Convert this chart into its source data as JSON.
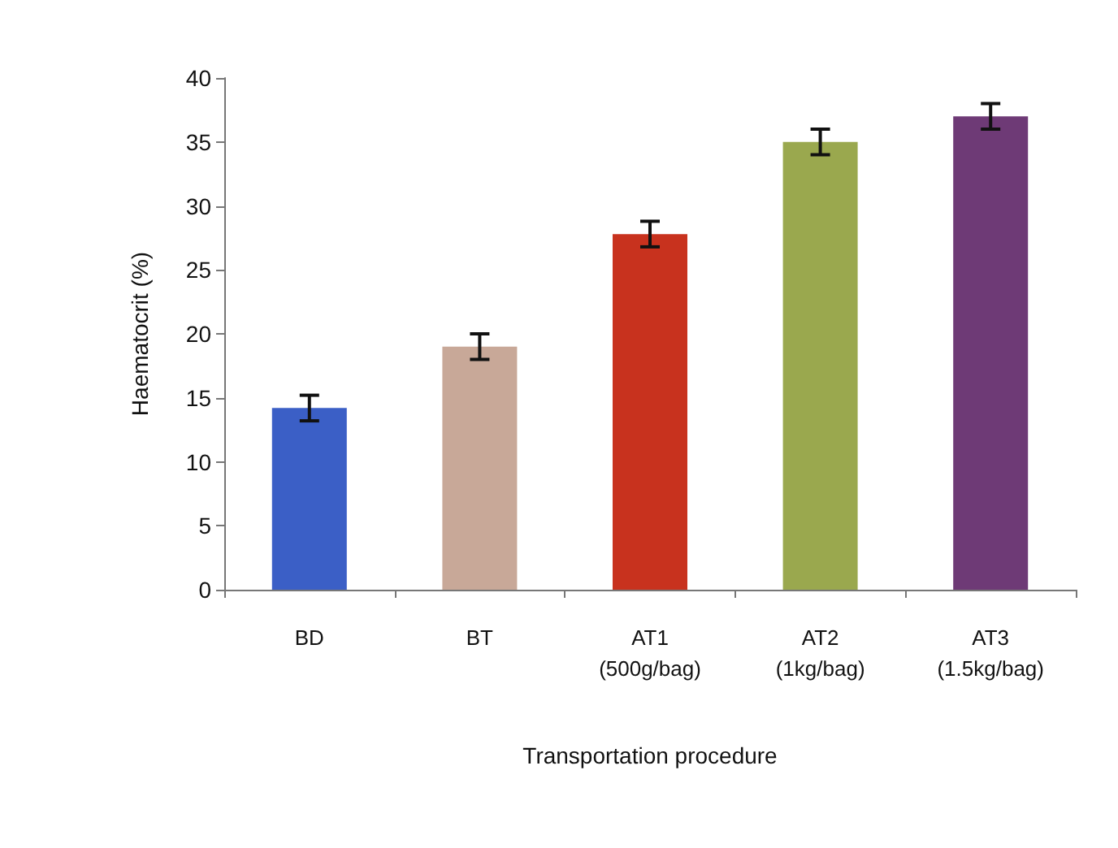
{
  "chart_data": {
    "type": "bar",
    "xlabel": "Transportation procedure",
    "ylabel": "Haematocrit (%)",
    "categories": [
      "BD",
      "BT",
      "AT1\n(500g/bag)",
      "AT2\n(1kg/bag)",
      "AT3\n(1.5kg/bag)"
    ],
    "values": [
      14.2,
      19,
      27.8,
      35,
      37
    ],
    "colors": [
      "#3b5fc6",
      "#c8a898",
      "#c8321e",
      "#9aa84e",
      "#6e3a76"
    ],
    "errors": [
      1,
      1,
      1,
      1,
      1
    ],
    "ylim": [
      0,
      40
    ],
    "yticks": [
      0,
      5,
      10,
      15,
      20,
      25,
      30,
      35,
      40
    ],
    "grid": false
  }
}
